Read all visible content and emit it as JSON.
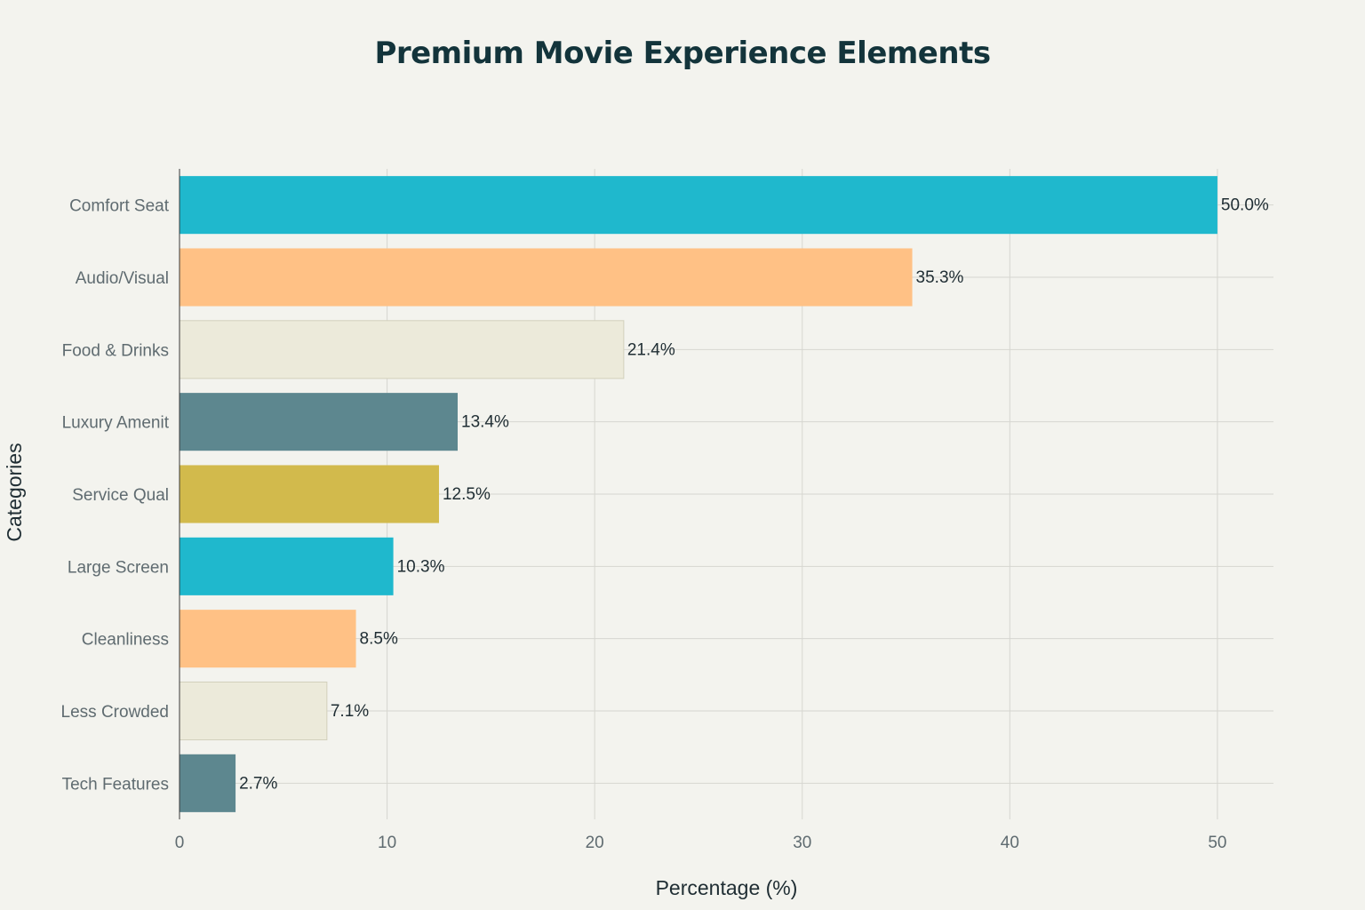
{
  "chart_data": {
    "type": "bar",
    "orientation": "horizontal",
    "title": "Premium Movie Experience Elements",
    "xlabel": "Percentage (%)",
    "ylabel": "Categories",
    "xlim": [
      0,
      52.7
    ],
    "xticks": [
      0,
      10,
      20,
      30,
      40,
      50
    ],
    "grid": true,
    "categories": [
      "Comfort Seat",
      "Audio/Visual",
      "Food & Drinks",
      "Luxury Amenit",
      "Service Qual",
      "Large Screen",
      "Cleanliness",
      "Less Crowded",
      "Tech Features"
    ],
    "values": [
      50.0,
      35.3,
      21.4,
      13.4,
      12.5,
      10.3,
      8.5,
      7.1,
      2.7
    ],
    "data_labels": [
      "50.0%",
      "35.3%",
      "21.4%",
      "13.4%",
      "12.5%",
      "10.3%",
      "8.5%",
      "7.1%",
      "2.7%"
    ],
    "colors": [
      "#1fb8cd",
      "#ffc185",
      "#eceada",
      "#5d878f",
      "#d2ba4c",
      "#1fb8cd",
      "#ffc185",
      "#eceada",
      "#5d878f"
    ]
  }
}
